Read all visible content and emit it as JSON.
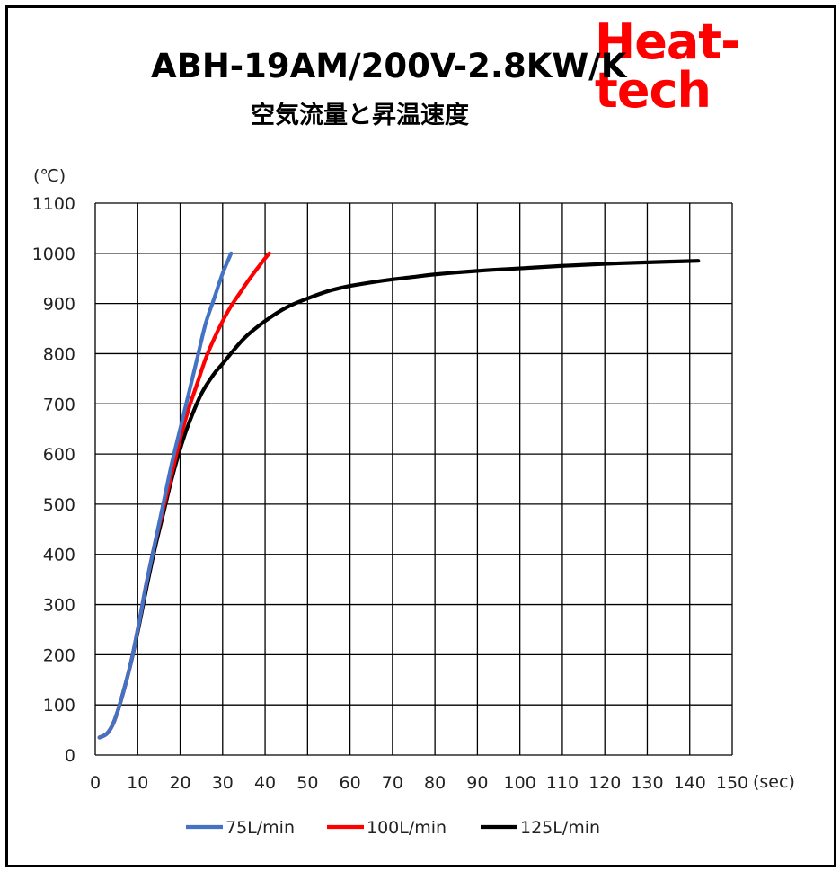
{
  "brand": {
    "text": "Heat-tech",
    "color": "#ff0000"
  },
  "chart_data": {
    "type": "line",
    "title": "ABH-19AM/200V-2.8KW/K",
    "subtitle": "空気流量と昇温速度",
    "xlabel": "(sec)",
    "ylabel": "(℃)",
    "xlim": [
      0,
      150
    ],
    "ylim": [
      0,
      1100
    ],
    "x_ticks": [
      0,
      10,
      20,
      30,
      40,
      50,
      60,
      70,
      80,
      90,
      100,
      110,
      120,
      130,
      140,
      150
    ],
    "y_ticks": [
      0,
      100,
      200,
      300,
      400,
      500,
      600,
      700,
      800,
      900,
      1000,
      1100
    ],
    "grid": true,
    "legend_position": "bottom",
    "series": [
      {
        "name": "75L/min",
        "color": "#4472c4",
        "points": [
          [
            1,
            35
          ],
          [
            3,
            45
          ],
          [
            5,
            80
          ],
          [
            8,
            170
          ],
          [
            10,
            250
          ],
          [
            12,
            340
          ],
          [
            14,
            420
          ],
          [
            16,
            500
          ],
          [
            18,
            580
          ],
          [
            20,
            650
          ],
          [
            22,
            720
          ],
          [
            24,
            790
          ],
          [
            26,
            860
          ],
          [
            28,
            910
          ],
          [
            30,
            960
          ],
          [
            32,
            1000
          ]
        ]
      },
      {
        "name": "100L/min",
        "color": "#ff0000",
        "points": [
          [
            1,
            35
          ],
          [
            3,
            45
          ],
          [
            5,
            80
          ],
          [
            8,
            170
          ],
          [
            10,
            250
          ],
          [
            12,
            340
          ],
          [
            14,
            420
          ],
          [
            16,
            490
          ],
          [
            18,
            560
          ],
          [
            20,
            630
          ],
          [
            22,
            690
          ],
          [
            24,
            740
          ],
          [
            26,
            790
          ],
          [
            28,
            830
          ],
          [
            30,
            865
          ],
          [
            32,
            895
          ],
          [
            34,
            920
          ],
          [
            36,
            945
          ],
          [
            38,
            968
          ],
          [
            40,
            990
          ],
          [
            41,
            1000
          ]
        ]
      },
      {
        "name": "125L/min",
        "color": "#000000",
        "points": [
          [
            1,
            35
          ],
          [
            3,
            45
          ],
          [
            5,
            80
          ],
          [
            8,
            170
          ],
          [
            10,
            245
          ],
          [
            12,
            330
          ],
          [
            14,
            410
          ],
          [
            16,
            480
          ],
          [
            18,
            550
          ],
          [
            20,
            610
          ],
          [
            22,
            660
          ],
          [
            25,
            720
          ],
          [
            28,
            760
          ],
          [
            30,
            780
          ],
          [
            35,
            830
          ],
          [
            40,
            865
          ],
          [
            45,
            892
          ],
          [
            50,
            910
          ],
          [
            55,
            925
          ],
          [
            60,
            935
          ],
          [
            65,
            942
          ],
          [
            70,
            948
          ],
          [
            75,
            953
          ],
          [
            80,
            958
          ],
          [
            90,
            965
          ],
          [
            100,
            970
          ],
          [
            110,
            975
          ],
          [
            120,
            979
          ],
          [
            130,
            982
          ],
          [
            142,
            985
          ]
        ]
      }
    ]
  }
}
